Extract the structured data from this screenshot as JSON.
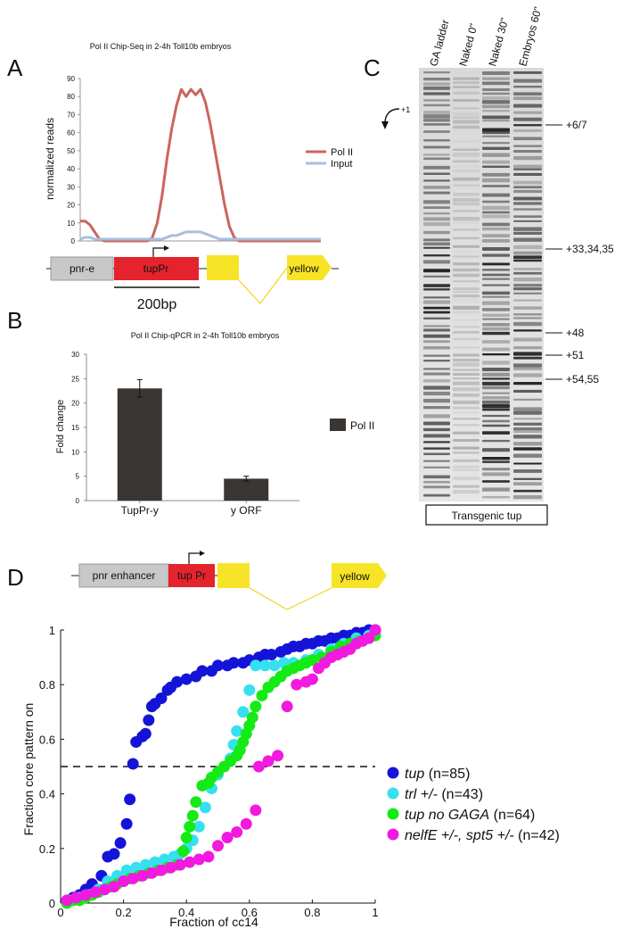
{
  "panel_letters": {
    "a": "A",
    "b": "B",
    "c": "C",
    "d": "D"
  },
  "panel_a": {
    "title": "Pol II Chip-Seq  in 2-4h Toll10b embryos",
    "ylabel": "normalized reads",
    "scale_label": "200bp",
    "gene_labels": {
      "enhancer": "pnr-e",
      "promoter": "tupPr",
      "reporter": "yellow"
    }
  },
  "panel_b": {
    "title": "Pol II Chip-qPCR  in 2-4h Toll10b embryos",
    "ylabel": "Fold change"
  },
  "panel_c": {
    "lanes": [
      "GA ladder",
      "Naked 0\"",
      "Naked 30\"",
      "Embryos 60\""
    ],
    "tss_label": "+1",
    "site_labels": [
      "+6/7",
      "+33,34,35",
      "+48",
      "+51",
      "+54,55"
    ],
    "caption": "Transgenic tup"
  },
  "panel_d": {
    "gene_labels": {
      "enhancer": "pnr enhancer",
      "promoter": "tup Pr",
      "reporter": "yellow"
    },
    "ylabel": "Fraction core pattern on",
    "xlabel": "Fraction of cc14"
  },
  "chart_data": [
    {
      "type": "line",
      "title": "Pol II Chip-Seq  in 2-4h Toll10b embryos",
      "ylabel": "normalized reads",
      "ylim": [
        0,
        90
      ],
      "yticks": [
        0,
        10,
        20,
        30,
        40,
        50,
        60,
        70,
        80,
        90
      ],
      "x_positions": [
        0,
        2,
        4,
        6,
        8,
        10,
        12,
        14,
        16,
        18,
        20,
        22,
        24,
        26,
        28,
        30,
        32,
        34,
        36,
        38,
        40,
        42,
        44,
        46,
        48,
        50,
        52,
        54,
        56,
        58,
        60,
        62,
        64,
        66,
        68,
        70,
        72,
        74,
        76,
        78,
        80,
        82,
        84,
        86,
        88,
        90,
        92,
        94,
        96,
        98,
        100
      ],
      "series": [
        {
          "name": "Pol II",
          "color": "#c9665e",
          "values": [
            11,
            11,
            9,
            5,
            1,
            0,
            0,
            0,
            0,
            0,
            0,
            0,
            0,
            0,
            0,
            2,
            10,
            25,
            45,
            62,
            75,
            84,
            80,
            84,
            81,
            84,
            77,
            65,
            50,
            35,
            20,
            8,
            2,
            0,
            0,
            0,
            0,
            0,
            0,
            0,
            0,
            0,
            0,
            0,
            0,
            0,
            0,
            0,
            0,
            0,
            0
          ]
        },
        {
          "name": "Input",
          "color": "#a8c0dc",
          "values": [
            1,
            2,
            2,
            1,
            1,
            1,
            1,
            1,
            1,
            1,
            1,
            1,
            1,
            1,
            1,
            1,
            1,
            1,
            2,
            3,
            3,
            4,
            5,
            5,
            5,
            5,
            4,
            3,
            2,
            1,
            1,
            1,
            1,
            1,
            1,
            1,
            1,
            1,
            1,
            1,
            1,
            1,
            1,
            1,
            1,
            1,
            1,
            1,
            1,
            1,
            1
          ]
        }
      ],
      "legend": "right"
    },
    {
      "type": "bar",
      "title": "Pol II Chip-qPCR  in 2-4h Toll10b embryos",
      "ylabel": "Fold change",
      "categories": [
        "TupPr-y",
        "y ORF"
      ],
      "ylim": [
        0,
        30
      ],
      "yticks": [
        0,
        5,
        10,
        15,
        20,
        25,
        30
      ],
      "series": [
        {
          "name": "Pol II",
          "color": "#3a3633",
          "values": [
            23,
            4.5
          ],
          "errors": [
            1.8,
            0.5
          ]
        }
      ],
      "legend": "right"
    },
    {
      "type": "scatter",
      "xlabel": "Fraction of cc14",
      "ylabel": "Fraction core pattern on",
      "xlim": [
        0,
        1
      ],
      "ylim": [
        0,
        1
      ],
      "xticks": [
        0,
        0.2,
        0.4,
        0.6,
        0.8,
        1
      ],
      "xtick_labels": [
        "0",
        "0.2",
        "0.4",
        "0.6",
        "0.8",
        "1"
      ],
      "yticks": [
        0,
        0.2,
        0.4,
        0.6,
        0.8,
        1
      ],
      "ytick_labels": [
        "0",
        "0.2",
        "0.4",
        "0.6",
        "0.8",
        "1"
      ],
      "reference_line_y": 0.5,
      "legend": "right",
      "series": [
        {
          "name": "tup",
          "n_label": " (n=85)",
          "color": "#1414d8",
          "points": [
            [
              0.02,
              0.01
            ],
            [
              0.04,
              0.02
            ],
            [
              0.06,
              0.03
            ],
            [
              0.08,
              0.05
            ],
            [
              0.1,
              0.07
            ],
            [
              0.13,
              0.1
            ],
            [
              0.15,
              0.17
            ],
            [
              0.17,
              0.18
            ],
            [
              0.19,
              0.22
            ],
            [
              0.21,
              0.29
            ],
            [
              0.22,
              0.38
            ],
            [
              0.23,
              0.51
            ],
            [
              0.24,
              0.59
            ],
            [
              0.26,
              0.61
            ],
            [
              0.27,
              0.62
            ],
            [
              0.28,
              0.67
            ],
            [
              0.29,
              0.72
            ],
            [
              0.3,
              0.73
            ],
            [
              0.32,
              0.75
            ],
            [
              0.34,
              0.78
            ],
            [
              0.35,
              0.79
            ],
            [
              0.37,
              0.81
            ],
            [
              0.4,
              0.82
            ],
            [
              0.43,
              0.83
            ],
            [
              0.45,
              0.85
            ],
            [
              0.48,
              0.85
            ],
            [
              0.5,
              0.87
            ],
            [
              0.53,
              0.87
            ],
            [
              0.55,
              0.88
            ],
            [
              0.58,
              0.88
            ],
            [
              0.6,
              0.89
            ],
            [
              0.63,
              0.9
            ],
            [
              0.65,
              0.91
            ],
            [
              0.67,
              0.91
            ],
            [
              0.7,
              0.92
            ],
            [
              0.72,
              0.93
            ],
            [
              0.74,
              0.94
            ],
            [
              0.76,
              0.94
            ],
            [
              0.78,
              0.95
            ],
            [
              0.8,
              0.95
            ],
            [
              0.82,
              0.96
            ],
            [
              0.84,
              0.96
            ],
            [
              0.86,
              0.97
            ],
            [
              0.88,
              0.97
            ],
            [
              0.9,
              0.98
            ],
            [
              0.92,
              0.98
            ],
            [
              0.94,
              0.99
            ],
            [
              0.96,
              0.99
            ],
            [
              0.98,
              1.0
            ],
            [
              1.0,
              1.0
            ]
          ]
        },
        {
          "name": "trl +/-",
          "n_label": " (n=43)",
          "color": "#35e0f0",
          "points": [
            [
              0.03,
              0.01
            ],
            [
              0.06,
              0.02
            ],
            [
              0.09,
              0.03
            ],
            [
              0.12,
              0.05
            ],
            [
              0.15,
              0.08
            ],
            [
              0.18,
              0.1
            ],
            [
              0.21,
              0.12
            ],
            [
              0.24,
              0.13
            ],
            [
              0.27,
              0.14
            ],
            [
              0.3,
              0.15
            ],
            [
              0.33,
              0.16
            ],
            [
              0.36,
              0.17
            ],
            [
              0.38,
              0.18
            ],
            [
              0.4,
              0.2
            ],
            [
              0.42,
              0.23
            ],
            [
              0.44,
              0.28
            ],
            [
              0.46,
              0.35
            ],
            [
              0.48,
              0.42
            ],
            [
              0.5,
              0.47
            ],
            [
              0.52,
              0.5
            ],
            [
              0.54,
              0.53
            ],
            [
              0.55,
              0.58
            ],
            [
              0.56,
              0.63
            ],
            [
              0.58,
              0.7
            ],
            [
              0.6,
              0.78
            ],
            [
              0.62,
              0.87
            ],
            [
              0.65,
              0.87
            ],
            [
              0.68,
              0.87
            ],
            [
              0.71,
              0.88
            ],
            [
              0.74,
              0.88
            ],
            [
              0.78,
              0.89
            ],
            [
              0.82,
              0.91
            ],
            [
              0.86,
              0.93
            ],
            [
              0.9,
              0.95
            ],
            [
              0.94,
              0.97
            ],
            [
              0.98,
              0.98
            ]
          ]
        },
        {
          "name": "tup no GAGA",
          "n_label": " (n=64)",
          "color": "#14ea14",
          "points": [
            [
              0.02,
              0.0
            ],
            [
              0.04,
              0.01
            ],
            [
              0.06,
              0.01
            ],
            [
              0.08,
              0.02
            ],
            [
              0.1,
              0.03
            ],
            [
              0.12,
              0.04
            ],
            [
              0.14,
              0.05
            ],
            [
              0.16,
              0.06
            ],
            [
              0.18,
              0.07
            ],
            [
              0.2,
              0.08
            ],
            [
              0.22,
              0.09
            ],
            [
              0.25,
              0.1
            ],
            [
              0.28,
              0.11
            ],
            [
              0.31,
              0.12
            ],
            [
              0.34,
              0.13
            ],
            [
              0.37,
              0.14
            ],
            [
              0.39,
              0.19
            ],
            [
              0.4,
              0.24
            ],
            [
              0.41,
              0.28
            ],
            [
              0.42,
              0.32
            ],
            [
              0.43,
              0.37
            ],
            [
              0.45,
              0.43
            ],
            [
              0.47,
              0.44
            ],
            [
              0.48,
              0.46
            ],
            [
              0.5,
              0.48
            ],
            [
              0.52,
              0.5
            ],
            [
              0.54,
              0.52
            ],
            [
              0.56,
              0.54
            ],
            [
              0.57,
              0.56
            ],
            [
              0.58,
              0.59
            ],
            [
              0.59,
              0.62
            ],
            [
              0.6,
              0.65
            ],
            [
              0.61,
              0.68
            ],
            [
              0.62,
              0.72
            ],
            [
              0.64,
              0.76
            ],
            [
              0.66,
              0.79
            ],
            [
              0.68,
              0.81
            ],
            [
              0.7,
              0.83
            ],
            [
              0.72,
              0.85
            ],
            [
              0.74,
              0.86
            ],
            [
              0.76,
              0.87
            ],
            [
              0.78,
              0.88
            ],
            [
              0.8,
              0.89
            ],
            [
              0.83,
              0.9
            ],
            [
              0.86,
              0.92
            ],
            [
              0.89,
              0.94
            ],
            [
              0.92,
              0.95
            ],
            [
              0.95,
              0.96
            ],
            [
              0.98,
              0.97
            ],
            [
              1.0,
              0.98
            ]
          ]
        },
        {
          "name": "nelfE +/-, spt5 +/-",
          "n_label": " (n=42)",
          "color": "#f219e0",
          "points": [
            [
              0.02,
              0.01
            ],
            [
              0.05,
              0.02
            ],
            [
              0.08,
              0.03
            ],
            [
              0.11,
              0.04
            ],
            [
              0.14,
              0.05
            ],
            [
              0.17,
              0.06
            ],
            [
              0.2,
              0.08
            ],
            [
              0.23,
              0.09
            ],
            [
              0.26,
              0.1
            ],
            [
              0.29,
              0.11
            ],
            [
              0.32,
              0.12
            ],
            [
              0.35,
              0.13
            ],
            [
              0.38,
              0.14
            ],
            [
              0.41,
              0.15
            ],
            [
              0.44,
              0.16
            ],
            [
              0.47,
              0.17
            ],
            [
              0.5,
              0.21
            ],
            [
              0.53,
              0.24
            ],
            [
              0.56,
              0.26
            ],
            [
              0.59,
              0.29
            ],
            [
              0.62,
              0.34
            ],
            [
              0.63,
              0.5
            ],
            [
              0.66,
              0.52
            ],
            [
              0.69,
              0.54
            ],
            [
              0.72,
              0.72
            ],
            [
              0.75,
              0.8
            ],
            [
              0.78,
              0.81
            ],
            [
              0.8,
              0.82
            ],
            [
              0.82,
              0.86
            ],
            [
              0.84,
              0.88
            ],
            [
              0.86,
              0.9
            ],
            [
              0.88,
              0.91
            ],
            [
              0.9,
              0.92
            ],
            [
              0.92,
              0.93
            ],
            [
              0.94,
              0.95
            ],
            [
              0.96,
              0.96
            ],
            [
              0.98,
              0.97
            ],
            [
              1.0,
              1.0
            ]
          ]
        }
      ]
    }
  ]
}
